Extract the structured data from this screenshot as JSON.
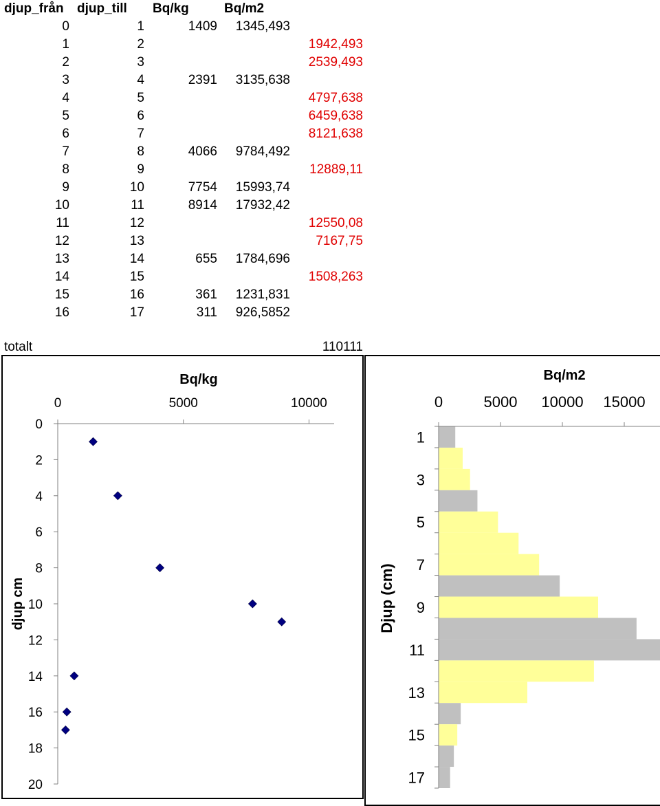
{
  "table": {
    "headers": [
      "djup_från",
      "djup_till",
      "Bq/kg",
      "Bq/m2"
    ],
    "rows": [
      {
        "fran": "0",
        "till": "1",
        "bqkg": "1409",
        "bqm2": "1345,493",
        "est": ""
      },
      {
        "fran": "1",
        "till": "2",
        "bqkg": "",
        "bqm2": "",
        "est": "1942,493"
      },
      {
        "fran": "2",
        "till": "3",
        "bqkg": "",
        "bqm2": "",
        "est": "2539,493"
      },
      {
        "fran": "3",
        "till": "4",
        "bqkg": "2391",
        "bqm2": "3135,638",
        "est": ""
      },
      {
        "fran": "4",
        "till": "5",
        "bqkg": "",
        "bqm2": "",
        "est": "4797,638"
      },
      {
        "fran": "5",
        "till": "6",
        "bqkg": "",
        "bqm2": "",
        "est": "6459,638"
      },
      {
        "fran": "6",
        "till": "7",
        "bqkg": "",
        "bqm2": "",
        "est": "8121,638"
      },
      {
        "fran": "7",
        "till": "8",
        "bqkg": "4066",
        "bqm2": "9784,492",
        "est": ""
      },
      {
        "fran": "8",
        "till": "9",
        "bqkg": "",
        "bqm2": "",
        "est": "12889,11"
      },
      {
        "fran": "9",
        "till": "10",
        "bqkg": "7754",
        "bqm2": "15993,74",
        "est": ""
      },
      {
        "fran": "10",
        "till": "11",
        "bqkg": "8914",
        "bqm2": "17932,42",
        "est": ""
      },
      {
        "fran": "11",
        "till": "12",
        "bqkg": "",
        "bqm2": "",
        "est": "12550,08"
      },
      {
        "fran": "12",
        "till": "13",
        "bqkg": "",
        "bqm2": "",
        "est": "7167,75"
      },
      {
        "fran": "13",
        "till": "14",
        "bqkg": "655",
        "bqm2": "1784,696",
        "est": ""
      },
      {
        "fran": "14",
        "till": "15",
        "bqkg": "",
        "bqm2": "",
        "est": "1508,263"
      },
      {
        "fran": "15",
        "till": "16",
        "bqkg": "361",
        "bqm2": "1231,831",
        "est": ""
      },
      {
        "fran": "16",
        "till": "17",
        "bqkg": "311",
        "bqm2": "926,5852",
        "est": ""
      }
    ],
    "total_label": "totalt",
    "total_value": "110111"
  },
  "colors": {
    "estimate_text": "#e00000",
    "scatter_marker": "#000080",
    "bar_measured": "#c0c0c0",
    "bar_estimated": "#ffff99"
  },
  "chart_data": [
    {
      "type": "scatter",
      "title": "Bq/kg",
      "xlabel": "",
      "ylabel": "djup cm",
      "xlim": [
        0,
        11000
      ],
      "ylim": [
        0,
        20
      ],
      "x_ticks": [
        0,
        5000,
        10000
      ],
      "y_ticks": [
        0,
        2,
        4,
        6,
        8,
        10,
        12,
        14,
        16,
        18,
        20
      ],
      "x_axis_position": "top",
      "y_reversed": true,
      "grid": false,
      "marker": "diamond",
      "points": [
        {
          "x": 1409,
          "y": 1
        },
        {
          "x": 2391,
          "y": 4
        },
        {
          "x": 4066,
          "y": 8
        },
        {
          "x": 7754,
          "y": 10
        },
        {
          "x": 8914,
          "y": 11
        },
        {
          "x": 655,
          "y": 14
        },
        {
          "x": 361,
          "y": 16
        },
        {
          "x": 311,
          "y": 17
        }
      ]
    },
    {
      "type": "bar",
      "orientation": "horizontal",
      "title": "Bq/m2",
      "ylabel": "Djup (cm)",
      "x_axis_position": "top",
      "xlim": [
        0,
        18000
      ],
      "x_ticks": [
        0,
        5000,
        10000,
        15000
      ],
      "y_tick_labels": [
        "1",
        "3",
        "5",
        "7",
        "9",
        "11",
        "13",
        "15",
        "17"
      ],
      "categories": [
        "1",
        "2",
        "3",
        "4",
        "5",
        "6",
        "7",
        "8",
        "9",
        "10",
        "11",
        "12",
        "13",
        "14",
        "15",
        "16",
        "17"
      ],
      "values": [
        1345.493,
        1942.493,
        2539.493,
        3135.638,
        4797.638,
        6459.638,
        8121.638,
        9784.492,
        12889.11,
        15993.74,
        17932.42,
        12550.08,
        7167.75,
        1784.696,
        1508.263,
        1231.831,
        926.5852
      ],
      "estimated": [
        false,
        true,
        true,
        false,
        true,
        true,
        true,
        false,
        true,
        false,
        false,
        true,
        true,
        false,
        true,
        false,
        false
      ],
      "grid": false
    }
  ]
}
